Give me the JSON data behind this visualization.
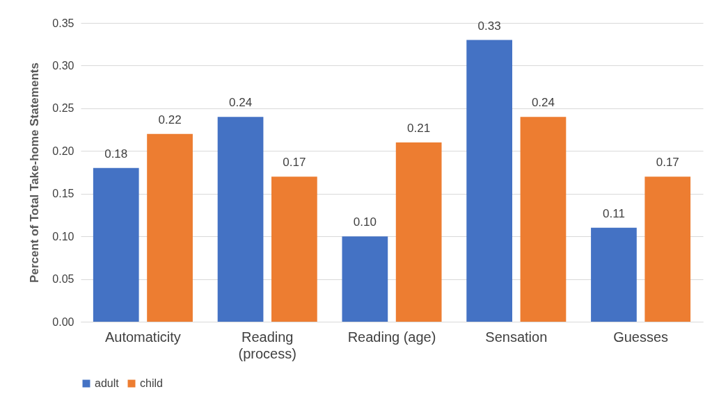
{
  "chart_data": {
    "type": "bar",
    "ylabel": "Percent of Total Take-home Statements",
    "categories": [
      "Automaticity",
      "Reading (process)",
      "Reading (age)",
      "Sensation",
      "Guesses"
    ],
    "series": [
      {
        "name": "adult",
        "color": "#4472c4",
        "values": [
          0.18,
          0.24,
          0.1,
          0.33,
          0.11
        ],
        "value_labels": [
          "0.18",
          "0.24",
          "0.10",
          "0.33",
          "0.11"
        ]
      },
      {
        "name": "child",
        "color": "#ed7d31",
        "values": [
          0.22,
          0.17,
          0.21,
          0.24,
          0.17
        ],
        "value_labels": [
          "0.22",
          "0.17",
          "0.21",
          "0.24",
          "0.17"
        ]
      }
    ],
    "ylim": [
      0,
      0.35
    ],
    "yticks": [
      {
        "value": 0,
        "label": "0.00"
      },
      {
        "value": 0.05,
        "label": "0.05"
      },
      {
        "value": 0.1,
        "label": "0.10"
      },
      {
        "value": 0.15,
        "label": "0.15"
      },
      {
        "value": 0.2,
        "label": "0.20"
      },
      {
        "value": 0.25,
        "label": "0.25"
      },
      {
        "value": 0.3,
        "label": "0.30"
      },
      {
        "value": 0.35,
        "label": "0.35"
      }
    ],
    "grid": "y",
    "legend": "bottom"
  }
}
